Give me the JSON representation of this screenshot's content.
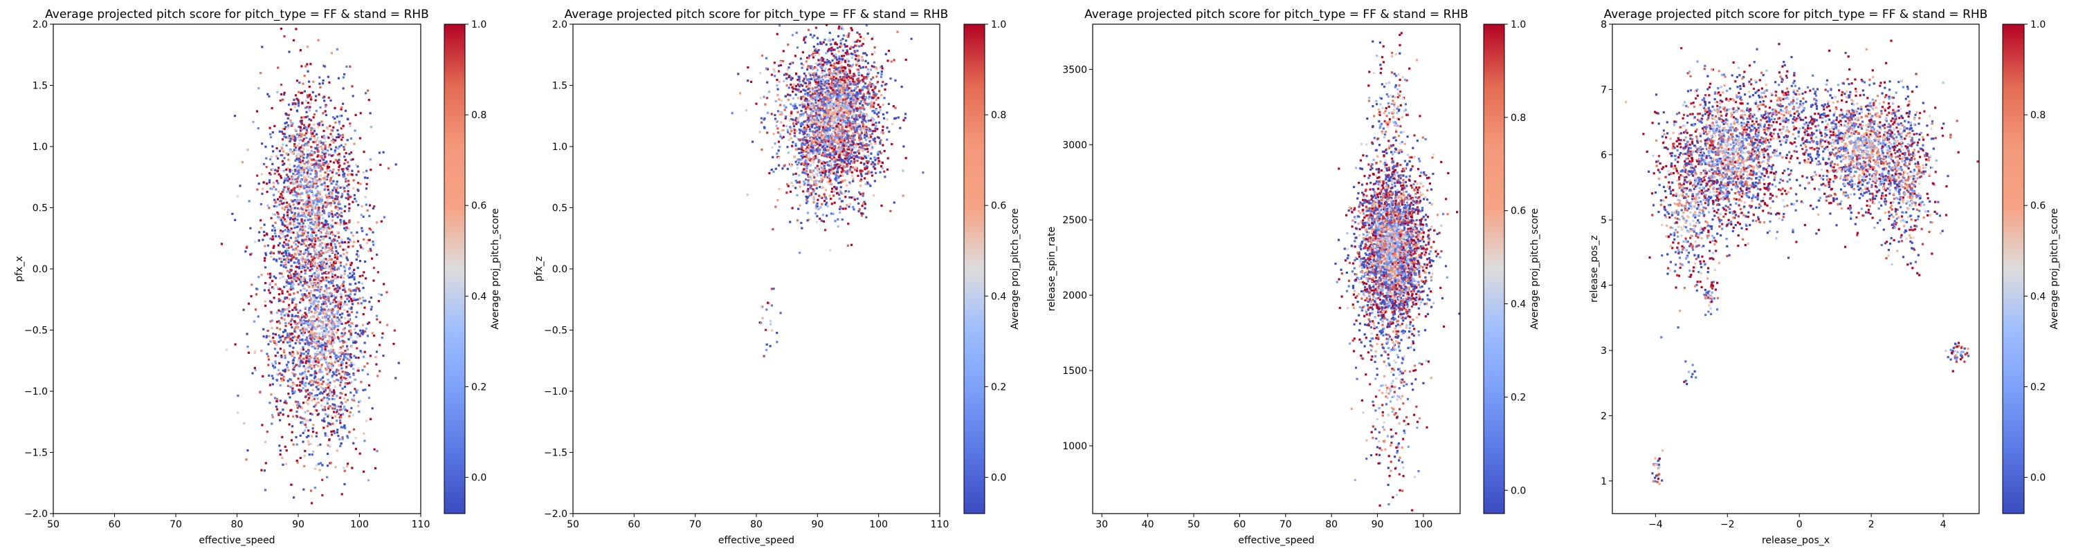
{
  "chart_data": [
    {
      "type": "scatter",
      "title": "Average projected pitch score for pitch_type = FF & stand = RHB",
      "xlabel": "effective_speed",
      "ylabel": "pfx_x",
      "xlim": [
        50,
        110
      ],
      "ylim": [
        -2.0,
        2.0
      ],
      "xticks": [
        "50",
        "60",
        "70",
        "80",
        "90",
        "100",
        "110"
      ],
      "yticks": [
        "−2.0",
        "−1.5",
        "−1.0",
        "−0.5",
        "0.0",
        "0.5",
        "1.0",
        "1.5",
        "2.0"
      ],
      "colorbar": {
        "label": "Average proj_pitch_score",
        "cmap": "coolwarm",
        "range": [
          -0.08,
          1.0
        ],
        "ticks": [
          "0.0",
          "0.2",
          "0.4",
          "0.6",
          "0.8",
          "1.0"
        ]
      },
      "clusters": [
        {
          "cx": 92,
          "cy": 0.6,
          "sx": 3.5,
          "sy": 0.45,
          "n": 1400
        },
        {
          "cx": 94,
          "cy": -0.55,
          "sx": 3.8,
          "sy": 0.45,
          "n": 1400
        },
        {
          "cx": 93,
          "cy": 0.0,
          "sx": 4.5,
          "sy": 0.9,
          "n": 700
        },
        {
          "cx": 88,
          "cy": -0.5,
          "sx": 4.0,
          "sy": 0.6,
          "n": 120
        }
      ]
    },
    {
      "type": "scatter",
      "title": "Average projected pitch score for pitch_type = FF & stand = RHB",
      "xlabel": "effective_speed",
      "ylabel": "pfx_z",
      "xlim": [
        50,
        110
      ],
      "ylim": [
        -2.0,
        2.0
      ],
      "xticks": [
        "50",
        "60",
        "70",
        "80",
        "90",
        "100",
        "110"
      ],
      "yticks": [
        "−2.0",
        "−1.5",
        "−1.0",
        "−0.5",
        "0.0",
        "0.5",
        "1.0",
        "1.5",
        "2.0"
      ],
      "colorbar": {
        "label": "Average proj_pitch_score",
        "cmap": "coolwarm",
        "range": [
          -0.08,
          1.0
        ],
        "ticks": [
          "0.0",
          "0.2",
          "0.4",
          "0.6",
          "0.8",
          "1.0"
        ]
      },
      "clusters": [
        {
          "cx": 93,
          "cy": 1.25,
          "sx": 3.8,
          "sy": 0.3,
          "n": 2600
        },
        {
          "cx": 90,
          "cy": 0.8,
          "sx": 3.0,
          "sy": 0.25,
          "n": 250
        },
        {
          "cx": 84,
          "cy": 1.3,
          "sx": 3.5,
          "sy": 0.25,
          "n": 100
        },
        {
          "cx": 82,
          "cy": -0.45,
          "sx": 1.0,
          "sy": 0.2,
          "n": 22
        }
      ]
    },
    {
      "type": "scatter",
      "title": "Average projected pitch score for pitch_type = FF & stand = RHB",
      "xlabel": "effective_speed",
      "ylabel": "release_spin_rate",
      "xlim": [
        28,
        108
      ],
      "ylim": [
        550,
        3800
      ],
      "xticks": [
        "30",
        "40",
        "50",
        "60",
        "70",
        "80",
        "90",
        "100"
      ],
      "yticks": [
        "1000",
        "1500",
        "2000",
        "2500",
        "3000",
        "3500"
      ],
      "colorbar": {
        "label": "Average proj_pitch_score",
        "cmap": "coolwarm",
        "range": [
          -0.05,
          1.0
        ],
        "ticks": [
          "0.0",
          "0.2",
          "0.4",
          "0.6",
          "0.8",
          "1.0"
        ]
      },
      "clusters": [
        {
          "cx": 93,
          "cy": 2300,
          "sx": 3.8,
          "sy": 260,
          "n": 3000
        },
        {
          "cx": 93,
          "cy": 1400,
          "sx": 3.0,
          "sy": 380,
          "n": 280
        },
        {
          "cx": 93,
          "cy": 3150,
          "sx": 2.5,
          "sy": 250,
          "n": 200
        }
      ]
    },
    {
      "type": "scatter",
      "title": "Average projected pitch score for pitch_type = FF & stand = RHB",
      "xlabel": "release_pos_x",
      "ylabel": "release_pos_z",
      "xlim": [
        -5.2,
        5.0
      ],
      "ylim": [
        0.5,
        8.0
      ],
      "xticks": [
        "−4",
        "−2",
        "0",
        "2",
        "4"
      ],
      "yticks": [
        "1",
        "2",
        "3",
        "4",
        "5",
        "6",
        "7",
        "8"
      ],
      "colorbar": {
        "label": "Average proj_pitch_score",
        "cmap": "coolwarm",
        "range": [
          -0.08,
          1.0
        ],
        "ticks": [
          "0.0",
          "0.2",
          "0.4",
          "0.6",
          "0.8",
          "1.0"
        ]
      },
      "clusters": [
        {
          "cx": -1.9,
          "cy": 6.0,
          "sx": 0.85,
          "sy": 0.55,
          "n": 1700
        },
        {
          "cx": 1.8,
          "cy": 6.1,
          "sx": 0.85,
          "sy": 0.45,
          "n": 1500
        },
        {
          "cx": -3.0,
          "cy": 5.1,
          "sx": 0.45,
          "sy": 0.6,
          "n": 400
        },
        {
          "cx": 3.0,
          "cy": 5.4,
          "sx": 0.4,
          "sy": 0.5,
          "n": 300
        },
        {
          "cx": -0.3,
          "cy": 6.7,
          "sx": 0.5,
          "sy": 0.25,
          "n": 200
        },
        {
          "cx": -2.5,
          "cy": 3.85,
          "sx": 0.1,
          "sy": 0.12,
          "n": 40
        },
        {
          "cx": 4.4,
          "cy": 2.95,
          "sx": 0.12,
          "sy": 0.1,
          "n": 40
        },
        {
          "cx": -3.95,
          "cy": 1.15,
          "sx": 0.06,
          "sy": 0.12,
          "n": 25
        },
        {
          "cx": -3.0,
          "cy": 2.6,
          "sx": 0.08,
          "sy": 0.15,
          "n": 10
        }
      ]
    }
  ]
}
